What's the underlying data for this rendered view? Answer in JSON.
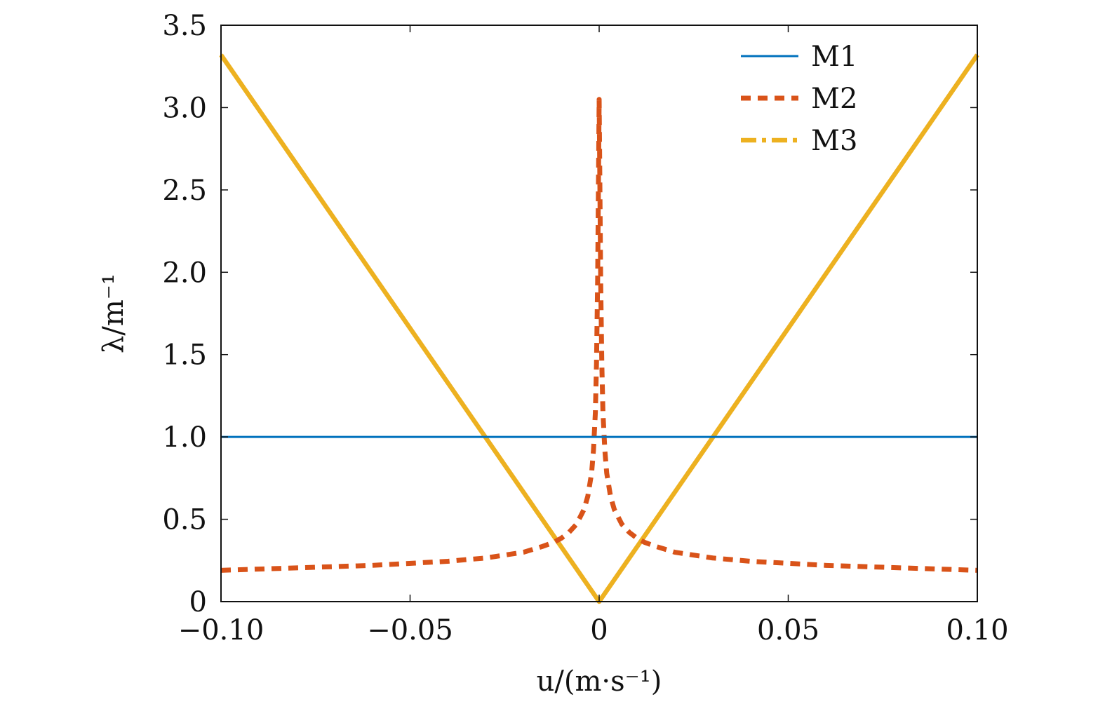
{
  "chart_data": {
    "type": "line",
    "title": "",
    "xlabel": "u/(m·s⁻¹)",
    "ylabel": "λ/m⁻¹",
    "xlim": [
      -0.1,
      0.1
    ],
    "ylim": [
      0,
      3.5
    ],
    "grid": false,
    "legend_position": "top-right",
    "x_ticks": [
      -0.1,
      -0.05,
      0,
      0.05,
      0.1
    ],
    "x_tick_labels": [
      "−0.10",
      "−0.05",
      "0",
      "0.05",
      "0.10"
    ],
    "y_ticks": [
      0,
      0.5,
      1.0,
      1.5,
      2.0,
      2.5,
      3.0,
      3.5
    ],
    "y_tick_labels": [
      "0",
      "0.5",
      "1.0",
      "1.5",
      "2.0",
      "2.5",
      "3.0",
      "3.5"
    ],
    "series": [
      {
        "name": "M1",
        "color": "#0072BD",
        "style": "solid",
        "x": [
          -0.1,
          0.1
        ],
        "y": [
          1.0,
          1.0
        ]
      },
      {
        "name": "M2",
        "color": "#D95319",
        "style": "dashed",
        "x": [
          -0.1,
          -0.08,
          -0.06,
          -0.04,
          -0.03,
          -0.02,
          -0.015,
          -0.012,
          -0.01,
          -0.008,
          -0.006,
          -0.004,
          -0.003,
          -0.002,
          -0.0015,
          -0.001,
          -0.0007,
          -0.0004,
          -0.0002,
          0.0,
          0.0002,
          0.0004,
          0.0007,
          0.001,
          0.0015,
          0.002,
          0.003,
          0.004,
          0.006,
          0.008,
          0.01,
          0.012,
          0.015,
          0.02,
          0.03,
          0.04,
          0.06,
          0.08,
          0.1
        ],
        "y": [
          0.19,
          0.205,
          0.22,
          0.245,
          0.265,
          0.3,
          0.335,
          0.36,
          0.385,
          0.42,
          0.47,
          0.56,
          0.64,
          0.78,
          0.92,
          1.15,
          1.45,
          1.95,
          2.5,
          3.05,
          2.5,
          1.95,
          1.45,
          1.15,
          0.92,
          0.78,
          0.64,
          0.56,
          0.47,
          0.42,
          0.385,
          0.36,
          0.335,
          0.3,
          0.265,
          0.245,
          0.22,
          0.205,
          0.19
        ]
      },
      {
        "name": "M3",
        "color": "#EDB120",
        "style": "dash-dot",
        "x": [
          -0.1,
          0.0,
          0.1
        ],
        "y": [
          3.32,
          0.0,
          3.32
        ]
      }
    ]
  }
}
